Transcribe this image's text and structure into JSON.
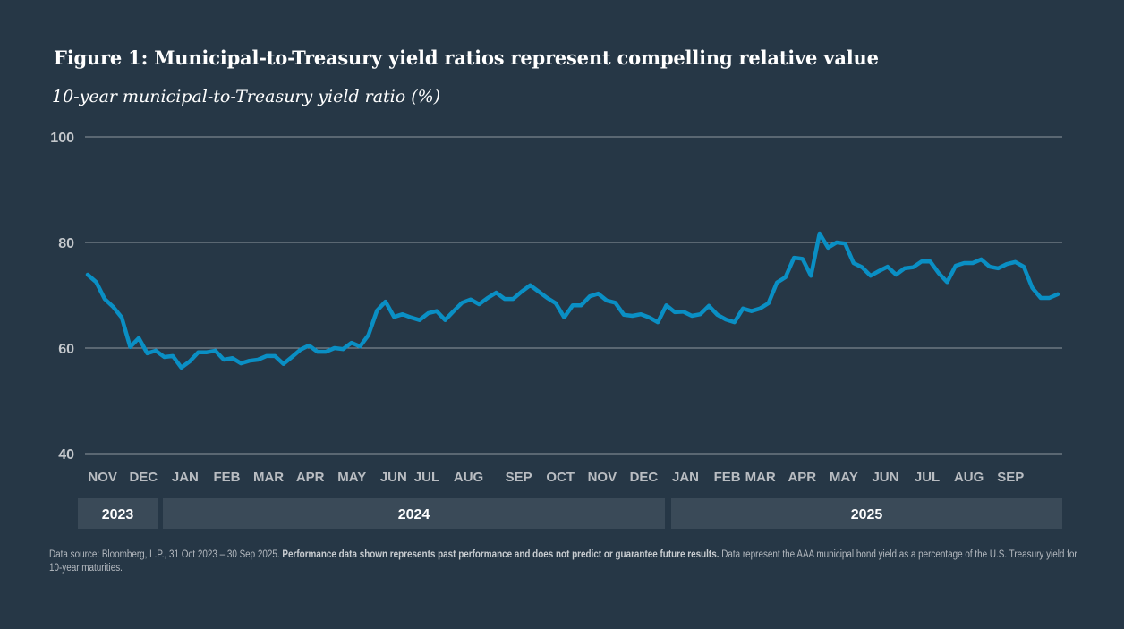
{
  "header": {
    "title": "Figure 1: Municipal-to-Treasury yield ratios represent compelling relative value",
    "subtitle": "10-year municipal-to-Treasury yield ratio (%)"
  },
  "footnote": {
    "source": "Data source: Bloomberg, L.P., 31 Oct 2023 – 30 Sep 2025.",
    "disclaimer": "Performance data shown represents past performance and does not predict or guarantee future results.",
    "description": "Data represent the AAA municipal bond yield as a percentage of the U.S. Treasury yield for 10-year maturities."
  },
  "colors": {
    "background": "#263746",
    "line": "#0a8fc4",
    "gridline": "#8e979f",
    "year_band": "#3a4a58"
  },
  "chart_data": {
    "type": "line",
    "title": "Figure 1: Municipal-to-Treasury yield ratios represent compelling relative value",
    "subtitle": "10-year municipal-to-Treasury yield ratio (%)",
    "xlabel": "",
    "ylabel": "10-year municipal-to-Treasury yield ratio (%)",
    "ylim": [
      40,
      100
    ],
    "yticks": [
      40,
      60,
      80,
      100
    ],
    "grid": true,
    "frequency": "weekly",
    "x_range": [
      "31 Oct 2023",
      "30 Sep 2025"
    ],
    "month_labels": [
      "NOV",
      "DEC",
      "JAN",
      "FEB",
      "MAR",
      "APR",
      "MAY",
      "JUN",
      "JUL",
      "AUG",
      "SEP",
      "OCT",
      "NOV",
      "DEC",
      "JAN",
      "FEB",
      "MAR",
      "APR",
      "MAY",
      "JUN",
      "JUL",
      "AUG",
      "SEP"
    ],
    "month_label_positions": [
      0.7,
      5.5,
      10.4,
      15.3,
      20.2,
      25.1,
      30.0,
      34.9,
      38.8,
      43.7,
      49.6,
      54.5,
      59.4,
      64.3,
      69.2,
      74.1,
      78.0,
      82.9,
      87.8,
      92.7,
      97.6,
      102.5,
      107.4
    ],
    "years": [
      {
        "label": "2023",
        "start_week": 0,
        "end_week": 9
      },
      {
        "label": "2024",
        "start_week": 9.5,
        "end_week": 67.6
      },
      {
        "label": "2025",
        "start_week": 68.2,
        "end_week": 113
      }
    ],
    "series": [
      {
        "name": "10-year municipal-to-Treasury yield ratio (%)",
        "values": [
          73.9,
          72.5,
          69.3,
          67.8,
          65.8,
          60.2,
          61.9,
          59.0,
          59.5,
          58.3,
          58.5,
          56.3,
          57.5,
          59.2,
          59.2,
          59.5,
          57.8,
          58.1,
          57.1,
          57.6,
          57.8,
          58.5,
          58.5,
          57.0,
          58.3,
          59.7,
          60.5,
          59.3,
          59.3,
          60.0,
          59.8,
          61.0,
          60.3,
          62.5,
          67.1,
          68.8,
          65.9,
          66.4,
          65.8,
          65.3,
          66.6,
          67.0,
          65.3,
          67.0,
          68.6,
          69.2,
          68.3,
          69.5,
          70.5,
          69.3,
          69.3,
          70.7,
          71.9,
          70.7,
          69.5,
          68.5,
          65.8,
          68.1,
          68.1,
          69.8,
          70.3,
          69.0,
          68.6,
          66.3,
          66.1,
          66.4,
          65.8,
          64.9,
          68.1,
          66.8,
          66.9,
          66.1,
          66.4,
          68.0,
          66.3,
          65.4,
          64.9,
          67.5,
          67.0,
          67.5,
          68.5,
          72.4,
          73.4,
          77.1,
          76.9,
          73.7,
          81.7,
          79.0,
          80.0,
          79.8,
          76.1,
          75.3,
          73.7,
          74.6,
          75.4,
          73.9,
          75.1,
          75.3,
          76.4,
          76.4,
          74.2,
          72.5,
          75.6,
          76.1,
          76.1,
          76.8,
          75.4,
          75.1,
          75.9,
          76.3,
          75.4,
          71.4,
          69.5,
          69.5,
          70.2
        ]
      }
    ]
  }
}
